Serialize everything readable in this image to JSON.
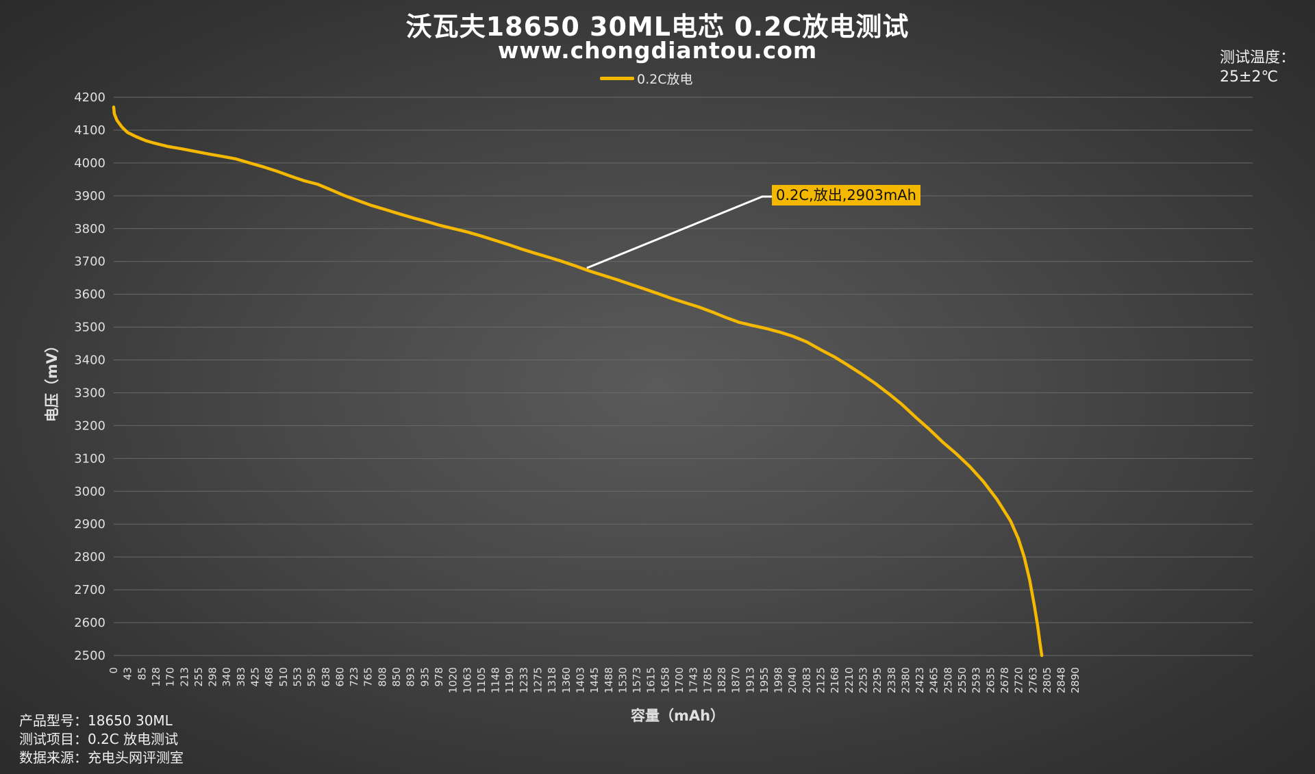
{
  "header": {
    "title": "沃瓦夫18650 30ML电芯  0.2C放电测试",
    "subtitle": "www.chongdiantou.com"
  },
  "side_info": {
    "temperature_label": "测试温度：",
    "temperature_value": "25±2℃"
  },
  "footer_info": {
    "line1": "产品型号：18650 30ML",
    "line2": "测试项目：0.2C 放电测试",
    "line3": "数据来源：充电头网评测室"
  },
  "colors": {
    "series": "#f5b800",
    "grid": "#6a6a6a",
    "axis_text": "#e0e0e0"
  },
  "chart_data": {
    "type": "line",
    "title": "沃瓦夫18650 30ML电芯  0.2C放电测试",
    "subtitle": "www.chongdiantou.com",
    "xlabel": "容量（mAh）",
    "ylabel": "电压（mV）",
    "ylim": [
      2500,
      4200
    ],
    "xlim": [
      0,
      2903
    ],
    "y_ticks": [
      2500,
      2600,
      2700,
      2800,
      2900,
      3000,
      3100,
      3200,
      3300,
      3400,
      3500,
      3600,
      3700,
      3800,
      3900,
      4000,
      4100,
      4200
    ],
    "x_tick_labels": [
      "0",
      "43",
      "85",
      "128",
      "170",
      "213",
      "255",
      "298",
      "340",
      "383",
      "425",
      "468",
      "510",
      "553",
      "595",
      "638",
      "680",
      "723",
      "765",
      "808",
      "850",
      "893",
      "935",
      "978",
      "1020",
      "1063",
      "1105",
      "1148",
      "1190",
      "1233",
      "1275",
      "1318",
      "1360",
      "1403",
      "1445",
      "1488",
      "1530",
      "1573",
      "1615",
      "1658",
      "1700",
      "1743",
      "1785",
      "1828",
      "1870",
      "1913",
      "1955",
      "1998",
      "2040",
      "2083",
      "2125",
      "2168",
      "2210",
      "2253",
      "2295",
      "2338",
      "2380",
      "2423",
      "2465",
      "2508",
      "2550",
      "2593",
      "2635",
      "2678",
      "2720",
      "2763",
      "2805",
      "2848",
      "2890"
    ],
    "grid": true,
    "legend_placement": "top-center",
    "annotation": {
      "text": "0.2C,放出,2903mAh",
      "x": 1480,
      "y": 3680
    },
    "series": [
      {
        "name": "0.2C放电",
        "color": "#f5b800",
        "x": [
          0,
          2,
          10,
          25,
          43,
          70,
          100,
          128,
          170,
          213,
          255,
          298,
          340,
          383,
          425,
          468,
          510,
          553,
          595,
          638,
          680,
          723,
          765,
          808,
          850,
          893,
          935,
          978,
          1020,
          1063,
          1105,
          1148,
          1190,
          1233,
          1275,
          1318,
          1360,
          1403,
          1445,
          1488,
          1530,
          1573,
          1615,
          1658,
          1700,
          1743,
          1785,
          1828,
          1870,
          1913,
          1955,
          1998,
          2040,
          2083,
          2125,
          2168,
          2210,
          2253,
          2295,
          2338,
          2380,
          2423,
          2465,
          2508,
          2550,
          2593,
          2635,
          2678,
          2720,
          2763,
          2805,
          2830,
          2848,
          2865,
          2880,
          2890,
          2897,
          2903
        ],
        "y": [
          4170,
          4150,
          4130,
          4110,
          4093,
          4080,
          4068,
          4060,
          4050,
          4043,
          4035,
          4027,
          4020,
          4012,
          4000,
          3988,
          3975,
          3960,
          3946,
          3935,
          3918,
          3900,
          3885,
          3870,
          3858,
          3845,
          3833,
          3822,
          3810,
          3800,
          3790,
          3778,
          3765,
          3752,
          3738,
          3725,
          3713,
          3700,
          3686,
          3671,
          3658,
          3645,
          3631,
          3617,
          3603,
          3588,
          3575,
          3562,
          3547,
          3530,
          3515,
          3505,
          3496,
          3485,
          3472,
          3455,
          3432,
          3410,
          3385,
          3358,
          3330,
          3298,
          3265,
          3226,
          3190,
          3150,
          3115,
          3075,
          3030,
          2975,
          2910,
          2855,
          2800,
          2730,
          2650,
          2590,
          2540,
          2500
        ]
      }
    ]
  }
}
